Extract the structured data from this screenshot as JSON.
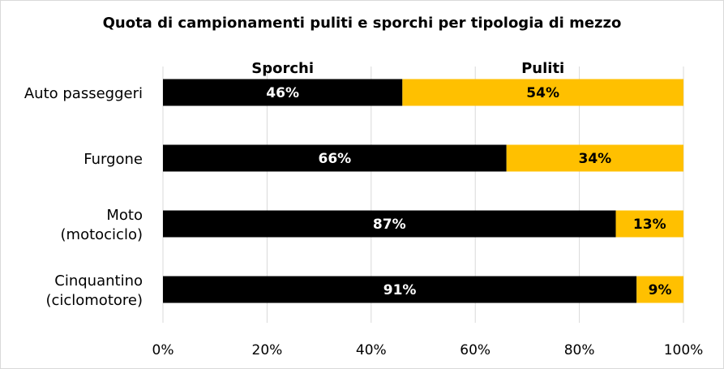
{
  "chart_data": {
    "type": "bar",
    "orientation": "horizontal",
    "stacked": true,
    "title": "Quota di campionamenti puliti e sporchi per tipologia di mezzo",
    "categories": [
      [
        "Auto passeggeri"
      ],
      [
        "Furgone"
      ],
      [
        "Moto",
        "(motociclo)"
      ],
      [
        "Cinquantino",
        "(ciclomotore)"
      ]
    ],
    "series": [
      {
        "name": "Sporchi",
        "values": [
          46,
          66,
          87,
          91
        ],
        "labels": [
          "46%",
          "66%",
          "87%",
          "91%"
        ],
        "color": "#000000",
        "label_color": "#ffffff"
      },
      {
        "name": "Puliti",
        "values": [
          54,
          34,
          13,
          9
        ],
        "labels": [
          "54%",
          "34%",
          "13%",
          "9%"
        ],
        "color": "#ffc000",
        "label_color": "#000000"
      }
    ],
    "xlim": [
      0,
      100
    ],
    "xticks": [
      0,
      20,
      40,
      60,
      80,
      100
    ],
    "xtick_labels": [
      "0%",
      "20%",
      "40%",
      "60%",
      "80%",
      "100%"
    ],
    "grid": true,
    "grid_color": "#d9d9d9",
    "legend": "top"
  }
}
